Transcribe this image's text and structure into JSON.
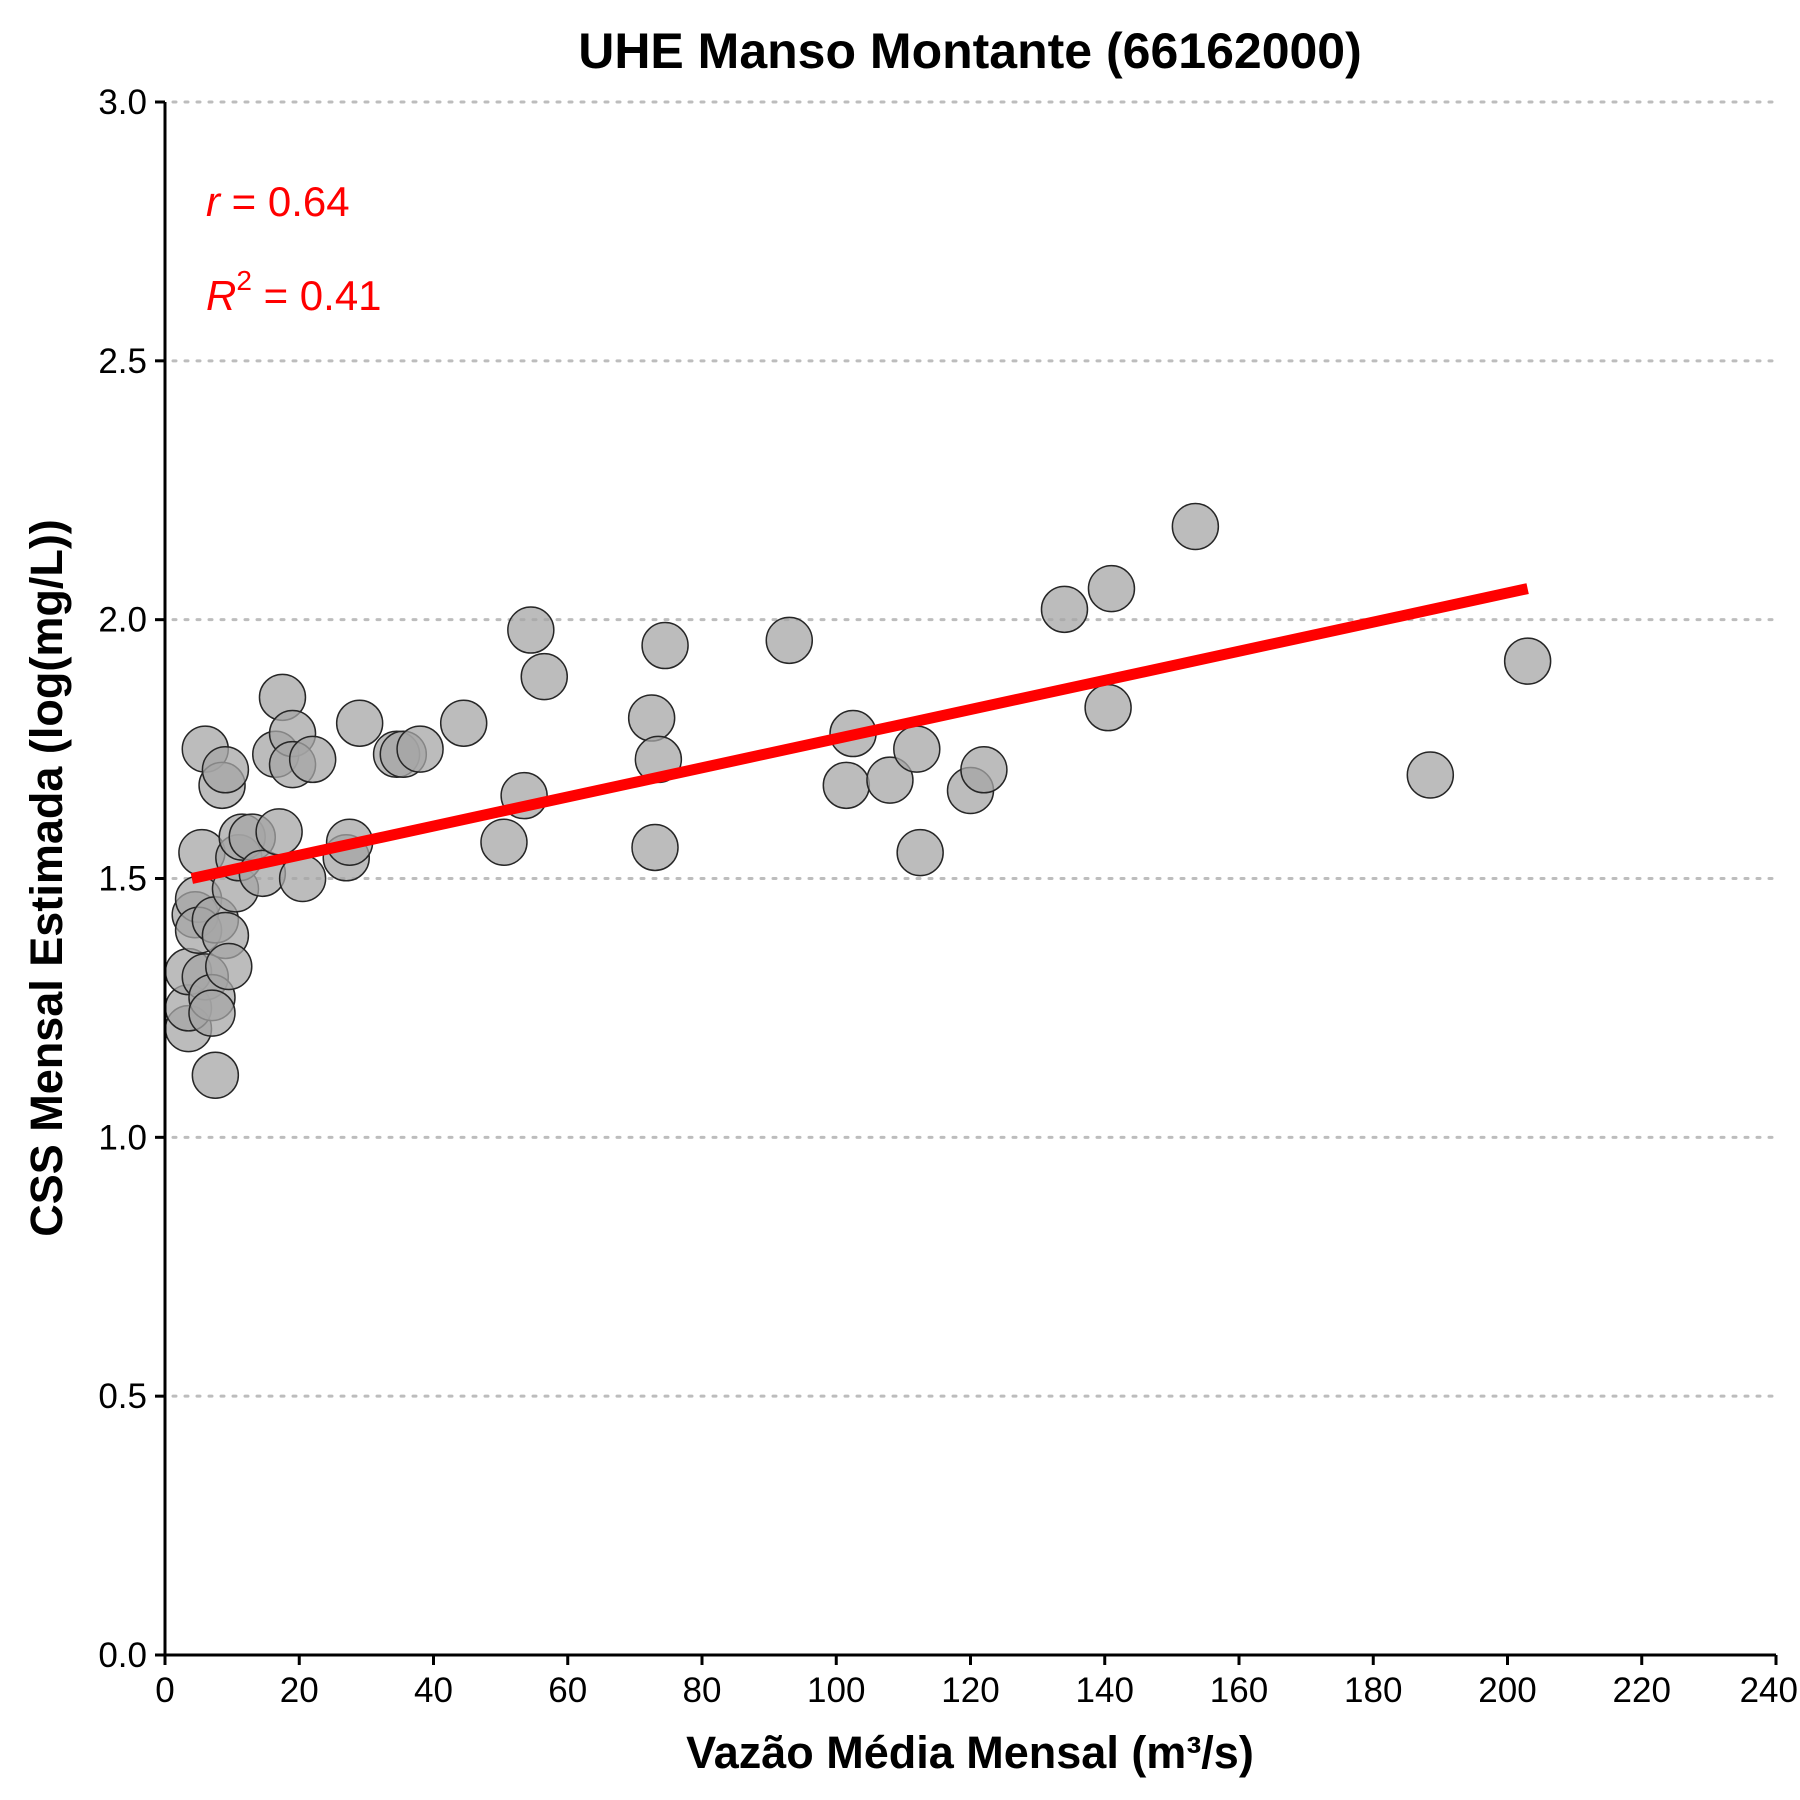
{
  "chart_data": {
    "type": "scatter",
    "title": "UHE Manso Montante (66162000)",
    "xlabel": "Vazão Média Mensal (m³/s)",
    "ylabel": "CSS Mensal Estimada (log(mg/L))",
    "xlim": [
      0,
      240
    ],
    "ylim": [
      0,
      3.0
    ],
    "x_ticks": [
      "0",
      "20",
      "40",
      "60",
      "80",
      "100",
      "120",
      "140",
      "160",
      "180",
      "200",
      "220",
      "240"
    ],
    "y_ticks": [
      "0.0",
      "0.5",
      "1.0",
      "1.5",
      "2.0",
      "2.5",
      "3.0"
    ],
    "grid": "horizontal dotted",
    "point_color": "#a6a6a6",
    "fit_color": "#ff0000",
    "fit_line": {
      "x": [
        4,
        203
      ],
      "y": [
        1.5,
        2.06
      ]
    },
    "annotations": {
      "r_symbol": "r",
      "r_value": " = 0.64",
      "r2_symbol": "R",
      "r2_exp": "2",
      "r2_value": " = 0.41"
    },
    "points": [
      {
        "x": 3.5,
        "y": 1.21
      },
      {
        "x": 3.5,
        "y": 1.25
      },
      {
        "x": 3.5,
        "y": 1.32
      },
      {
        "x": 4.5,
        "y": 1.43
      },
      {
        "x": 5,
        "y": 1.46
      },
      {
        "x": 5,
        "y": 1.4
      },
      {
        "x": 5.5,
        "y": 1.55
      },
      {
        "x": 6,
        "y": 1.31
      },
      {
        "x": 6,
        "y": 1.75
      },
      {
        "x": 7,
        "y": 1.27
      },
      {
        "x": 7,
        "y": 1.24
      },
      {
        "x": 7.5,
        "y": 1.42
      },
      {
        "x": 7.5,
        "y": 1.12
      },
      {
        "x": 8.5,
        "y": 1.68
      },
      {
        "x": 9,
        "y": 1.71
      },
      {
        "x": 9,
        "y": 1.39
      },
      {
        "x": 9.5,
        "y": 1.33
      },
      {
        "x": 10.5,
        "y": 1.48
      },
      {
        "x": 11,
        "y": 1.54
      },
      {
        "x": 11.5,
        "y": 1.58
      },
      {
        "x": 13,
        "y": 1.58
      },
      {
        "x": 14.5,
        "y": 1.51
      },
      {
        "x": 16.5,
        "y": 1.74
      },
      {
        "x": 17,
        "y": 1.59
      },
      {
        "x": 17.5,
        "y": 1.85
      },
      {
        "x": 19,
        "y": 1.78
      },
      {
        "x": 19,
        "y": 1.72
      },
      {
        "x": 20.5,
        "y": 1.5
      },
      {
        "x": 22,
        "y": 1.73
      },
      {
        "x": 27,
        "y": 1.54
      },
      {
        "x": 27.5,
        "y": 1.57
      },
      {
        "x": 29,
        "y": 1.8
      },
      {
        "x": 34.5,
        "y": 1.74
      },
      {
        "x": 35.5,
        "y": 1.74
      },
      {
        "x": 38,
        "y": 1.75
      },
      {
        "x": 44.5,
        "y": 1.8
      },
      {
        "x": 50.5,
        "y": 1.57
      },
      {
        "x": 53.5,
        "y": 1.66
      },
      {
        "x": 54.5,
        "y": 1.98
      },
      {
        "x": 56.5,
        "y": 1.89
      },
      {
        "x": 72.5,
        "y": 1.81
      },
      {
        "x": 73,
        "y": 1.56
      },
      {
        "x": 73.5,
        "y": 1.73
      },
      {
        "x": 74.5,
        "y": 1.95
      },
      {
        "x": 93,
        "y": 1.96
      },
      {
        "x": 101.5,
        "y": 1.68
      },
      {
        "x": 102.5,
        "y": 1.78
      },
      {
        "x": 108,
        "y": 1.69
      },
      {
        "x": 112,
        "y": 1.75
      },
      {
        "x": 112.5,
        "y": 1.55
      },
      {
        "x": 120,
        "y": 1.67
      },
      {
        "x": 122,
        "y": 1.71
      },
      {
        "x": 134,
        "y": 2.02
      },
      {
        "x": 140.5,
        "y": 1.83
      },
      {
        "x": 141,
        "y": 2.06
      },
      {
        "x": 153.5,
        "y": 2.18
      },
      {
        "x": 188.5,
        "y": 1.7
      },
      {
        "x": 203,
        "y": 1.92
      }
    ]
  }
}
